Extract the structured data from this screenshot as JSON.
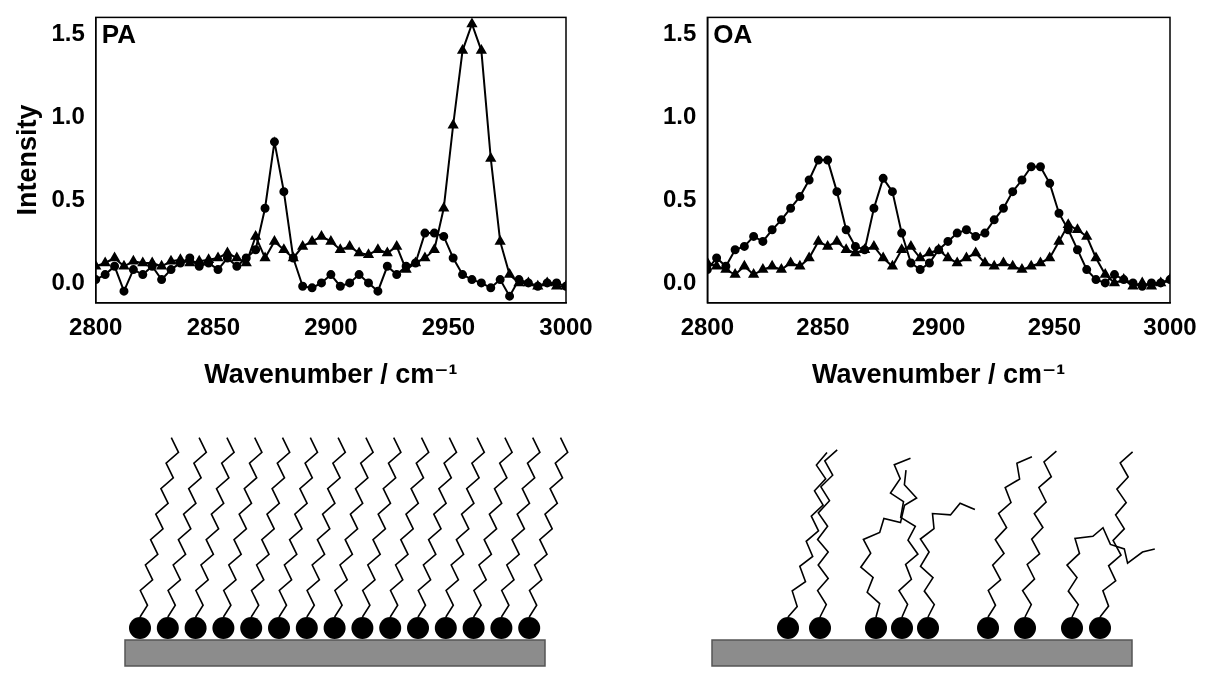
{
  "chart_data": [
    {
      "type": "line",
      "title": "PA",
      "xlabel": "Wavenumber / cm⁻¹",
      "ylabel": "Intensity",
      "xlim": [
        2800,
        3000
      ],
      "xticks": [
        2800,
        2850,
        2900,
        2950,
        3000
      ],
      "ylim": [
        -0.12,
        1.6
      ],
      "yticks": [
        {
          "value": 0,
          "label": "0.0"
        },
        {
          "value": 0.5,
          "label": "0.5"
        },
        {
          "value": 1,
          "label": "1.0"
        },
        {
          "value": 1.5,
          "label": "1.5"
        }
      ],
      "grid": false,
      "x": [
        2800,
        2804,
        2808,
        2812,
        2816,
        2820,
        2824,
        2828,
        2832,
        2836,
        2840,
        2844,
        2848,
        2852,
        2856,
        2860,
        2864,
        2868,
        2872,
        2876,
        2880,
        2884,
        2888,
        2892,
        2896,
        2900,
        2904,
        2908,
        2912,
        2916,
        2920,
        2924,
        2928,
        2932,
        2936,
        2940,
        2944,
        2948,
        2952,
        2956,
        2960,
        2964,
        2968,
        2972,
        2976,
        2980,
        2984,
        2988,
        2992,
        2996,
        3000
      ],
      "series": [
        {
          "color": "#000000",
          "marker": "circle",
          "values": [
            0.02,
            0.05,
            0.1,
            -0.05,
            0.08,
            0.05,
            0.1,
            0.02,
            0.08,
            0.12,
            0.15,
            0.1,
            0.12,
            0.08,
            0.15,
            0.1,
            0.15,
            0.2,
            0.45,
            0.85,
            0.55,
            0.15,
            -0.02,
            -0.03,
            0.0,
            0.05,
            -0.02,
            0.0,
            0.05,
            0.0,
            -0.05,
            0.1,
            0.05,
            0.1,
            0.12,
            0.3,
            0.3,
            0.28,
            0.15,
            0.05,
            0.02,
            0.0,
            -0.03,
            0.02,
            -0.08,
            0.02,
            0.0,
            -0.02,
            0.0,
            0.0,
            -0.02
          ]
        },
        {
          "color": "#000000",
          "marker": "triangle",
          "values": [
            0.1,
            0.12,
            0.15,
            0.1,
            0.13,
            0.12,
            0.12,
            0.1,
            0.13,
            0.14,
            0.12,
            0.13,
            0.14,
            0.15,
            0.18,
            0.15,
            0.12,
            0.28,
            0.15,
            0.25,
            0.2,
            0.15,
            0.22,
            0.25,
            0.28,
            0.25,
            0.2,
            0.22,
            0.18,
            0.17,
            0.2,
            0.18,
            0.22,
            0.08,
            0.12,
            0.15,
            0.2,
            0.45,
            0.95,
            1.4,
            1.56,
            1.4,
            0.75,
            0.25,
            0.05,
            0.0,
            0.0,
            -0.02,
            0.0,
            -0.02,
            -0.02
          ]
        }
      ]
    },
    {
      "type": "line",
      "title": "OA",
      "xlabel": "Wavenumber / cm⁻¹",
      "xlim": [
        2800,
        3000
      ],
      "xticks": [
        2800,
        2850,
        2900,
        2950,
        3000
      ],
      "ylim": [
        -0.12,
        1.6
      ],
      "yticks": [
        {
          "value": 0,
          "label": "0.0"
        },
        {
          "value": 0.5,
          "label": "0.5"
        },
        {
          "value": 1,
          "label": "1.0"
        },
        {
          "value": 1.5,
          "label": "1.5"
        }
      ],
      "grid": false,
      "x": [
        2800,
        2804,
        2808,
        2812,
        2816,
        2820,
        2824,
        2828,
        2832,
        2836,
        2840,
        2844,
        2848,
        2852,
        2856,
        2860,
        2864,
        2868,
        2872,
        2876,
        2880,
        2884,
        2888,
        2892,
        2896,
        2900,
        2904,
        2908,
        2912,
        2916,
        2920,
        2924,
        2928,
        2932,
        2936,
        2940,
        2944,
        2948,
        2952,
        2956,
        2960,
        2964,
        2968,
        2972,
        2976,
        2980,
        2984,
        2988,
        2992,
        2996,
        3000
      ],
      "series": [
        {
          "color": "#000000",
          "marker": "circle",
          "values": [
            0.08,
            0.15,
            0.1,
            0.2,
            0.22,
            0.28,
            0.25,
            0.32,
            0.38,
            0.45,
            0.52,
            0.62,
            0.74,
            0.74,
            0.55,
            0.32,
            0.22,
            0.2,
            0.45,
            0.63,
            0.55,
            0.3,
            0.12,
            0.08,
            0.12,
            0.2,
            0.25,
            0.3,
            0.32,
            0.28,
            0.3,
            0.38,
            0.45,
            0.55,
            0.62,
            0.7,
            0.7,
            0.6,
            0.42,
            0.32,
            0.2,
            0.08,
            0.02,
            0.0,
            0.05,
            0.02,
            0.0,
            -0.02,
            0.0,
            0.0,
            0.02
          ]
        },
        {
          "color": "#000000",
          "marker": "triangle",
          "values": [
            0.12,
            0.1,
            0.08,
            0.05,
            0.1,
            0.05,
            0.08,
            0.1,
            0.08,
            0.12,
            0.1,
            0.15,
            0.25,
            0.22,
            0.25,
            0.2,
            0.18,
            0.2,
            0.22,
            0.15,
            0.1,
            0.2,
            0.22,
            0.15,
            0.18,
            0.2,
            0.15,
            0.12,
            0.15,
            0.18,
            0.12,
            0.1,
            0.12,
            0.1,
            0.08,
            0.1,
            0.12,
            0.15,
            0.25,
            0.35,
            0.32,
            0.28,
            0.15,
            0.05,
            0.0,
            0.02,
            -0.02,
            0.0,
            -0.02,
            0.0,
            0.02
          ]
        }
      ]
    }
  ]
}
